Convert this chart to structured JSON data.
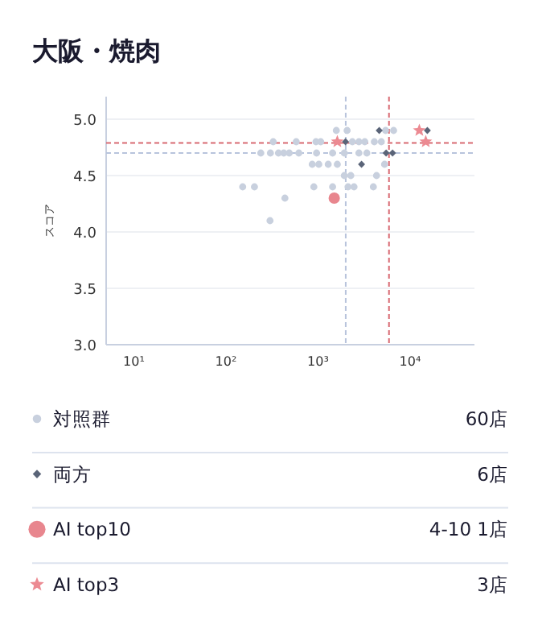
{
  "chart_data": {
    "type": "scatter",
    "title": "大阪・焼肉",
    "ylabel": "スコア",
    "log": "x",
    "xlim": [
      5,
      50000
    ],
    "xticks": [
      {
        "value": 10,
        "label": "10¹"
      },
      {
        "value": 100,
        "label": "10²"
      },
      {
        "value": 1000,
        "label": "10³"
      },
      {
        "value": 10000,
        "label": "10⁴"
      }
    ],
    "ylim": [
      3.0,
      5.2
    ],
    "yticks": [
      {
        "value": 3.0,
        "label": "3.0"
      },
      {
        "value": 3.5,
        "label": "3.5"
      },
      {
        "value": 4.0,
        "label": "4.0"
      },
      {
        "value": 4.5,
        "label": "4.5"
      },
      {
        "value": 5.0,
        "label": "5.0"
      }
    ],
    "grid": "y",
    "legend": "bottom",
    "series": [
      {
        "name": "対照群",
        "color": "#c8d0de",
        "marker": "circle",
        "x": [
          1580,
          2070,
          5420,
          6620,
          326,
          580,
          950,
          1070,
          2360,
          2780,
          3220,
          4090,
          4870,
          239,
          304,
          372,
          425,
          487,
          619,
          964,
          1440,
          1930,
          2780,
          3390,
          865,
          1020,
          1290,
          1620,
          5280,
          1930,
          2270,
          4320,
          152,
          204,
          901,
          1440,
          2120,
          2460,
          3990,
          437,
          301
        ],
        "values": [
          4.9,
          4.9,
          4.9,
          4.9,
          4.8,
          4.8,
          4.8,
          4.8,
          4.8,
          4.8,
          4.8,
          4.8,
          4.8,
          4.7,
          4.7,
          4.7,
          4.7,
          4.7,
          4.7,
          4.7,
          4.7,
          4.7,
          4.7,
          4.7,
          4.6,
          4.6,
          4.6,
          4.6,
          4.6,
          4.5,
          4.5,
          4.5,
          4.4,
          4.4,
          4.4,
          4.4,
          4.4,
          4.4,
          4.4,
          4.3,
          4.1
        ]
      },
      {
        "name": "両方",
        "color": "#5a6478",
        "marker": "diamond",
        "x": [
          4620,
          15400,
          1990,
          5490,
          6450,
          2970
        ],
        "values": [
          4.9,
          4.9,
          4.8,
          4.7,
          4.7,
          4.6
        ]
      },
      {
        "name": "AI top10",
        "color": "#e8868e",
        "marker": "circle",
        "x": [
          1500
        ],
        "values": [
          4.3
        ]
      },
      {
        "name": "AI top3",
        "color": "#ec8a92",
        "marker": "star",
        "x": [
          12600,
          1620,
          14800
        ],
        "values": [
          4.9,
          4.8,
          4.8
        ]
      }
    ],
    "ref_lines": [
      {
        "axis": "x",
        "value": 2000,
        "color": "#b8c4dc",
        "line_style": "dashed"
      },
      {
        "axis": "x",
        "value": 5900,
        "color": "#d86a72",
        "line_style": "dashed"
      },
      {
        "axis": "y",
        "value": 4.79,
        "color": "#d86a72",
        "line_style": "dashed"
      },
      {
        "axis": "y",
        "value": 4.7,
        "color": "#b8c4dc",
        "line_style": "dashed"
      }
    ],
    "annotations": [
      "60店",
      "6店",
      "4-10 1店",
      "3店"
    ]
  }
}
